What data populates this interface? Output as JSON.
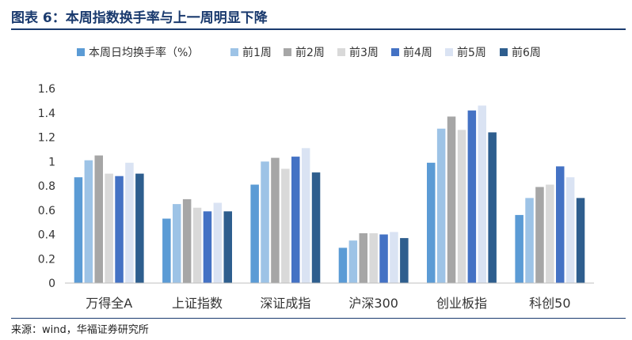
{
  "title": "图表 6：本周指数换手率与上一周明显下降",
  "source": "来源：wind，华福证券研究所",
  "chart_data": {
    "type": "bar",
    "categories": [
      "万得全A",
      "上证指数",
      "深证成指",
      "沪深300",
      "创业板指",
      "科创50"
    ],
    "series": [
      {
        "name": "本周日均换手率（%）",
        "color": "#5b9bd5",
        "values": [
          0.87,
          0.53,
          0.81,
          0.29,
          0.99,
          0.56
        ]
      },
      {
        "name": "前1周",
        "color": "#9dc3e6",
        "values": [
          1.01,
          0.65,
          1.0,
          0.35,
          1.27,
          0.7
        ]
      },
      {
        "name": "前2周",
        "color": "#a6a6a6",
        "values": [
          1.05,
          0.69,
          1.03,
          0.41,
          1.37,
          0.79
        ]
      },
      {
        "name": "前3周",
        "color": "#d9d9d9",
        "values": [
          0.9,
          0.62,
          0.94,
          0.41,
          1.26,
          0.81
        ]
      },
      {
        "name": "前4周",
        "color": "#4472c4",
        "values": [
          0.88,
          0.59,
          1.04,
          0.4,
          1.42,
          0.96
        ]
      },
      {
        "name": "前5周",
        "color": "#dae3f3",
        "values": [
          0.99,
          0.66,
          1.11,
          0.42,
          1.46,
          0.87
        ]
      },
      {
        "name": "前6周",
        "color": "#2e5e8e",
        "values": [
          0.9,
          0.59,
          0.91,
          0.37,
          1.24,
          0.7
        ]
      }
    ],
    "yticks": [
      "0",
      "0.2",
      "0.4",
      "0.6",
      "0.8",
      "1",
      "1.2",
      "1.4",
      "1.6"
    ],
    "ylim": [
      0,
      1.6
    ],
    "grid": false,
    "legend_position": "top"
  }
}
